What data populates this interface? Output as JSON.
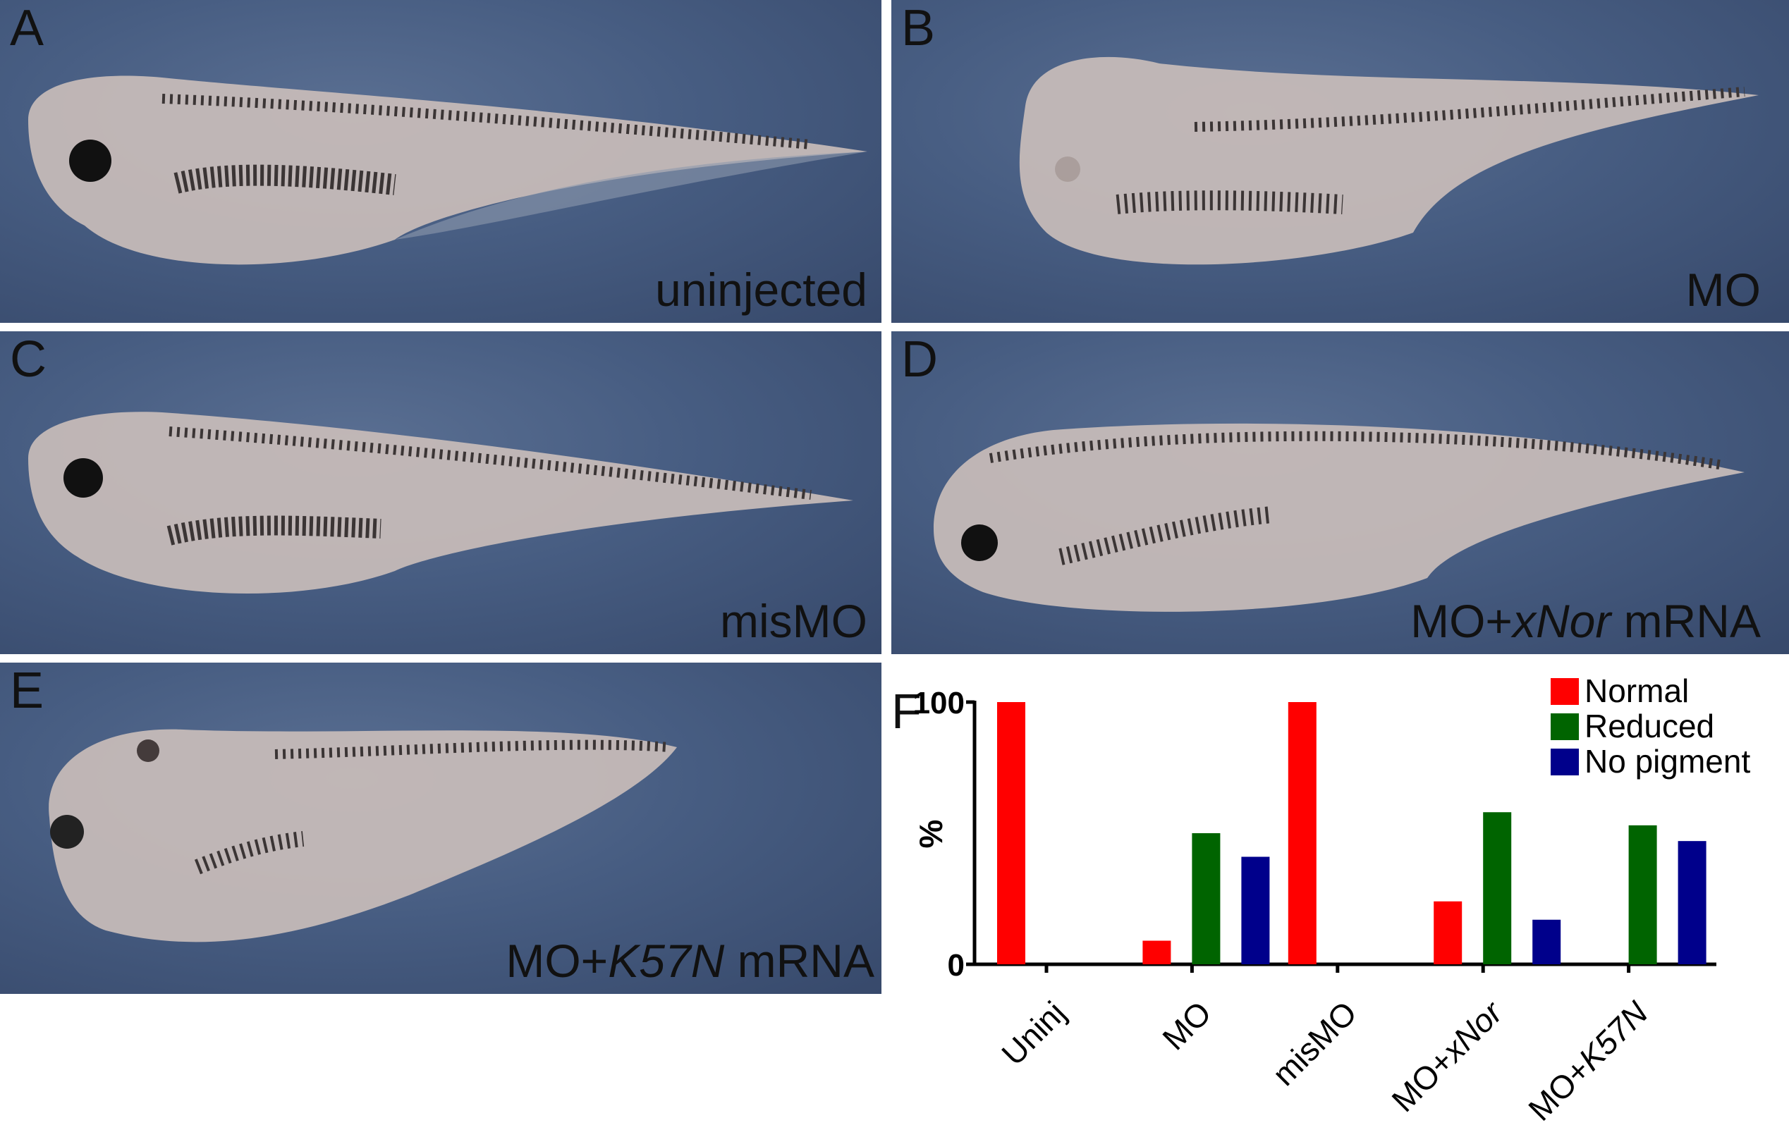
{
  "panels": [
    {
      "letter": "A",
      "condition": "uninjected",
      "condition_parts": [
        "uninjected",
        "",
        ""
      ]
    },
    {
      "letter": "B",
      "condition": "MO",
      "condition_parts": [
        "MO",
        "",
        ""
      ]
    },
    {
      "letter": "C",
      "condition": "misMO",
      "condition_parts": [
        "misMO",
        "",
        ""
      ]
    },
    {
      "letter": "D",
      "condition": "MO+xNor mRNA",
      "condition_parts": [
        "MO+",
        "xNor",
        " mRNA"
      ]
    },
    {
      "letter": "E",
      "condition": "MO+K57N mRNA",
      "condition_parts": [
        "MO+",
        "K57N",
        " mRNA"
      ]
    }
  ],
  "chart_panel_letter": "F",
  "colors": {
    "normal": "#ff0000",
    "reduced": "#006400",
    "no_pigment": "#00008b",
    "background": "#465b80"
  },
  "chart_data": {
    "type": "bar",
    "ylabel": "%",
    "ylim": [
      0,
      100
    ],
    "yticks": [
      "0",
      "100"
    ],
    "categories": [
      {
        "prefix": "Uninj",
        "italic": ""
      },
      {
        "prefix": "MO",
        "italic": ""
      },
      {
        "prefix": "misMO",
        "italic": ""
      },
      {
        "prefix": "MO+",
        "italic": "xNor"
      },
      {
        "prefix": "MO+",
        "italic": "K57N"
      }
    ],
    "series": [
      {
        "name": "Normal",
        "color": "#ff0000",
        "values": [
          100,
          9,
          100,
          24,
          0
        ]
      },
      {
        "name": "Reduced",
        "color": "#006400",
        "values": [
          0,
          50,
          0,
          58,
          53
        ]
      },
      {
        "name": "No pigment",
        "color": "#00008b",
        "values": [
          0,
          41,
          0,
          17,
          47
        ]
      }
    ],
    "legend_position": "top-right"
  }
}
